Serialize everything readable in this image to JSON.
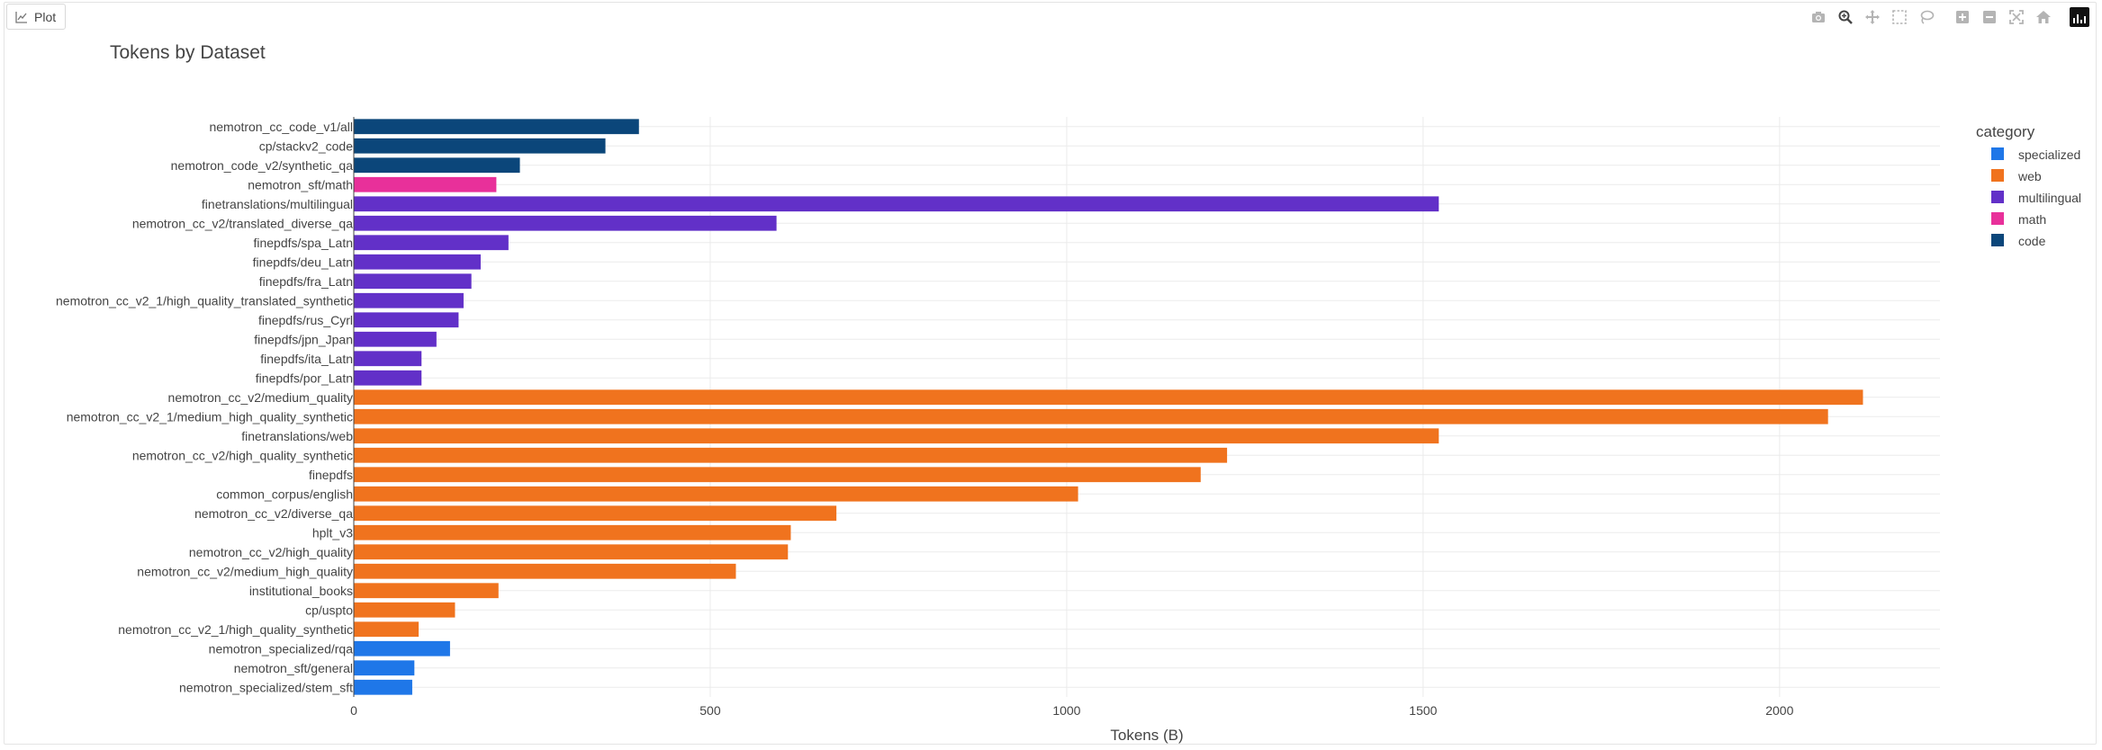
{
  "tab": {
    "label": "Plot"
  },
  "modebar": {
    "buttons": [
      "camera-icon",
      "zoom-icon",
      "pan-icon",
      "box-select-icon",
      "lasso-icon",
      "zoom-in-icon",
      "zoom-out-icon",
      "autoscale-icon",
      "reset-axes-icon"
    ],
    "logo": "plotly-logo-icon"
  },
  "chart_data": {
    "type": "bar",
    "orientation": "horizontal",
    "title": "Tokens by Dataset",
    "xlabel": "Tokens (B)",
    "ylabel": "",
    "xlim": [
      0,
      2225
    ],
    "xticks": [
      0,
      500,
      1000,
      1500,
      2000
    ],
    "grid": true,
    "legend_title": "category",
    "legend_position": "right",
    "categories_legend": [
      {
        "name": "specialized",
        "color": "#1f77e8"
      },
      {
        "name": "web",
        "color": "#f0731e"
      },
      {
        "name": "multilingual",
        "color": "#6230c8"
      },
      {
        "name": "math",
        "color": "#e8309a"
      },
      {
        "name": "code",
        "color": "#0b467a"
      }
    ],
    "bars": [
      {
        "label": "nemotron_cc_code_v1/all",
        "value": 400,
        "category": "code"
      },
      {
        "label": "cp/stackv2_code",
        "value": 353,
        "category": "code"
      },
      {
        "label": "nemotron_code_v2/synthetic_qa",
        "value": 233,
        "category": "code"
      },
      {
        "label": "nemotron_sft/math",
        "value": 200,
        "category": "math"
      },
      {
        "label": "finetranslations/multilingual",
        "value": 1522,
        "category": "multilingual"
      },
      {
        "label": "nemotron_cc_v2/translated_diverse_qa",
        "value": 593,
        "category": "multilingual"
      },
      {
        "label": "finepdfs/spa_Latn",
        "value": 217,
        "category": "multilingual"
      },
      {
        "label": "finepdfs/deu_Latn",
        "value": 178,
        "category": "multilingual"
      },
      {
        "label": "finepdfs/fra_Latn",
        "value": 165,
        "category": "multilingual"
      },
      {
        "label": "nemotron_cc_v2_1/high_quality_translated_synthetic",
        "value": 154,
        "category": "multilingual"
      },
      {
        "label": "finepdfs/rus_Cyrl",
        "value": 147,
        "category": "multilingual"
      },
      {
        "label": "finepdfs/jpn_Jpan",
        "value": 116,
        "category": "multilingual"
      },
      {
        "label": "finepdfs/ita_Latn",
        "value": 95,
        "category": "multilingual"
      },
      {
        "label": "finepdfs/por_Latn",
        "value": 95,
        "category": "multilingual"
      },
      {
        "label": "nemotron_cc_v2/medium_quality",
        "value": 2117,
        "category": "web"
      },
      {
        "label": "nemotron_cc_v2_1/medium_high_quality_synthetic",
        "value": 2068,
        "category": "web"
      },
      {
        "label": "finetranslations/web",
        "value": 1522,
        "category": "web"
      },
      {
        "label": "nemotron_cc_v2/high_quality_synthetic",
        "value": 1225,
        "category": "web"
      },
      {
        "label": "finepdfs",
        "value": 1188,
        "category": "web"
      },
      {
        "label": "common_corpus/english",
        "value": 1016,
        "category": "web"
      },
      {
        "label": "nemotron_cc_v2/diverse_qa",
        "value": 677,
        "category": "web"
      },
      {
        "label": "hplt_v3",
        "value": 613,
        "category": "web"
      },
      {
        "label": "nemotron_cc_v2/high_quality",
        "value": 609,
        "category": "web"
      },
      {
        "label": "nemotron_cc_v2/medium_high_quality",
        "value": 536,
        "category": "web"
      },
      {
        "label": "institutional_books",
        "value": 203,
        "category": "web"
      },
      {
        "label": "cp/uspto",
        "value": 142,
        "category": "web"
      },
      {
        "label": "nemotron_cc_v2_1/high_quality_synthetic",
        "value": 91,
        "category": "web"
      },
      {
        "label": "nemotron_specialized/rqa",
        "value": 135,
        "category": "specialized"
      },
      {
        "label": "nemotron_sft/general",
        "value": 85,
        "category": "specialized"
      },
      {
        "label": "nemotron_specialized/stem_sft",
        "value": 82,
        "category": "specialized"
      }
    ]
  }
}
